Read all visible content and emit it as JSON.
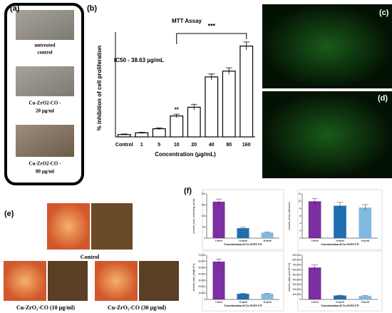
{
  "figure": {
    "panel_labels": [
      "(a)",
      "(b)",
      "(c)",
      "(d)",
      "(e)",
      "(f)"
    ],
    "panel_a_captions": [
      [
        "untreated",
        "control"
      ],
      [
        "Cu-ZrO2-CO -",
        "20 µg/ml"
      ],
      [
        "Cu-ZrO2-CO -",
        "80 µg/ml"
      ]
    ],
    "panel_e_captions": [
      "Control",
      "Cu-ZrO₂-CO (10 µg/ml)",
      "Cu-ZrO₂-CO (30 µg/ml)"
    ]
  },
  "chart_data": [
    {
      "type": "bar",
      "title": "MTT Assay",
      "ylabel": "% inhibition of cell proliferation",
      "xlabel": "Concentration (µg/mL)",
      "categories": [
        "Control",
        "1",
        "5",
        "10",
        "20",
        "40",
        "80",
        "160"
      ],
      "values": [
        2,
        3.5,
        7,
        18,
        25.5,
        51.5,
        56.5,
        78
      ],
      "errors": [
        0.5,
        0.5,
        0.8,
        1.5,
        2.5,
        2.5,
        2.8,
        3.5
      ],
      "ylim": [
        0,
        90
      ],
      "color": "#ffffff",
      "annotations": {
        "ic50": "IC50 - 38.63 µg/mL",
        "single": "**",
        "bracket": "***"
      }
    },
    {
      "type": "bar",
      "ylabel": "vessels_num_branching_points",
      "xlabel": "Concentration of Cu-ZrO2-CO",
      "categories": [
        "Control",
        "10 µg/ml",
        "30 µg/ml"
      ],
      "values": [
        165,
        45,
        25
      ],
      "errors": [
        12,
        4,
        3
      ],
      "colors": [
        "#7b2fa0",
        "#1f6fb0",
        "#7fb9e0"
      ],
      "ylim": [
        0,
        200
      ],
      "yticks": [
        0,
        50,
        100,
        150,
        200
      ]
    },
    {
      "type": "bar",
      "ylabel": "vessels_mean_thickness",
      "xlabel": "Concentration of Cu-ZrO2-CO",
      "categories": [
        "Control",
        "10 µg/ml",
        "30 µg/ml"
      ],
      "values": [
        10,
        8.8,
        8.3
      ],
      "errors": [
        0.8,
        0.9,
        0.8
      ],
      "colors": [
        "#7b2fa0",
        "#1f6fb0",
        "#7fb9e0"
      ],
      "ylim": [
        0,
        12
      ],
      "yticks": [
        0,
        2,
        4,
        6,
        8,
        10,
        12
      ]
    },
    {
      "type": "bar",
      "ylabel": "vessels_total_length [Px]",
      "xlabel": "Concentration of Cu-ZrO2-CO",
      "categories": [
        "Control",
        "10 µg/ml",
        "30 µg/ml"
      ],
      "values": [
        60000,
        9000,
        9000
      ],
      "errors": [
        4000,
        800,
        800
      ],
      "colors": [
        "#7b2fa0",
        "#1f6fb0",
        "#7fb9e0"
      ],
      "ylim": [
        0,
        70000
      ],
      "yticks": [
        0,
        {
          "value": 10000,
          "label": "10,000"
        },
        {
          "value": 20000,
          "label": "20,000"
        },
        {
          "value": 30000,
          "label": "30,000"
        },
        {
          "value": 40000,
          "label": "40,000"
        },
        {
          "value": 50000,
          "label": "50,000"
        },
        {
          "value": 60000,
          "label": "60,000"
        },
        {
          "value": 70000,
          "label": "70,000"
        }
      ]
    },
    {
      "type": "bar",
      "ylabel": "vessels_total_area [Px^2]",
      "xlabel": "Concentration of Cu-ZrO2-CO",
      "categories": [
        "Control",
        "10 µg/ml",
        "30 µg/ml"
      ],
      "values": [
        650000,
        80000,
        70000
      ],
      "errors": [
        50000,
        6000,
        6000
      ],
      "colors": [
        "#7b2fa0",
        "#1f6fb0",
        "#7fb9e0"
      ],
      "ylim": [
        0,
        900000
      ],
      "yticks": [
        0,
        {
          "value": 100000,
          "label": "100,000"
        },
        {
          "value": 200000,
          "label": "200,000"
        },
        {
          "value": 300000,
          "label": "300,000"
        },
        {
          "value": 400000,
          "label": "400,000"
        },
        {
          "value": 500000,
          "label": "500,000"
        },
        {
          "value": 600000,
          "label": "600,000"
        },
        {
          "value": 700000,
          "label": "700,000"
        },
        {
          "value": 800000,
          "label": "800,000"
        },
        {
          "value": 900000,
          "label": "900,000"
        }
      ]
    }
  ]
}
